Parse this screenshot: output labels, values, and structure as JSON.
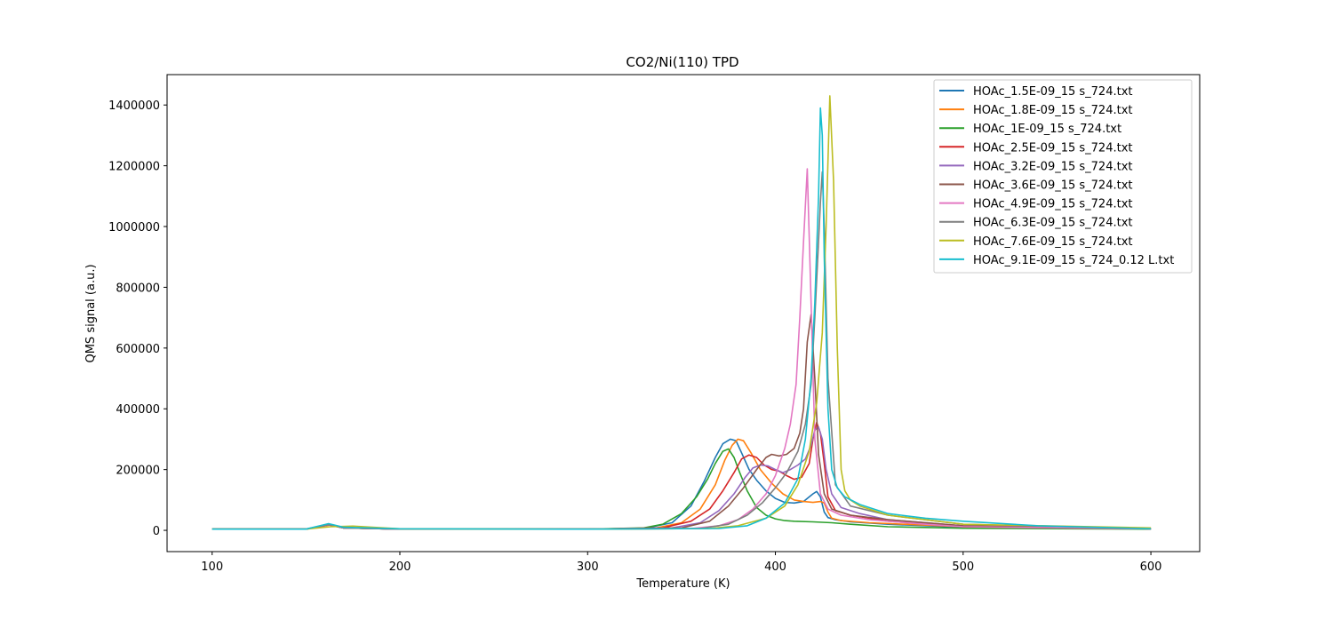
{
  "chart_data": {
    "type": "line",
    "title": "CO2/Ni(110) TPD",
    "xlabel": "Temperature (K)",
    "ylabel": "QMS signal (a.u.)",
    "xlim": [
      76,
      626
    ],
    "ylim": [
      -70000,
      1500000
    ],
    "xticks": [
      100,
      200,
      300,
      400,
      500,
      600
    ],
    "xtick_labels": [
      "100",
      "200",
      "300",
      "400",
      "500",
      "600"
    ],
    "yticks": [
      0,
      200000,
      400000,
      600000,
      800000,
      1000000,
      1200000,
      1400000
    ],
    "ytick_labels": [
      "0",
      "200000",
      "400000",
      "600000",
      "800000",
      "1000000",
      "1200000",
      "1400000"
    ],
    "grid": false,
    "legend_position": "top-right",
    "series": [
      {
        "name": "HOAc_1.5E-09_15 s_724.txt",
        "color": "#1f77b4",
        "x": [
          100,
          150,
          162,
          170,
          200,
          300,
          330,
          345,
          355,
          362,
          368,
          372,
          376,
          379,
          382,
          386,
          390,
          395,
          400,
          405,
          410,
          415,
          418,
          420,
          422,
          424,
          426,
          428,
          432,
          440,
          460,
          500,
          600
        ],
        "y": [
          4000,
          4000,
          20000,
          8000,
          4000,
          4000,
          6000,
          25000,
          80000,
          160000,
          240000,
          285000,
          300000,
          295000,
          255000,
          200000,
          165000,
          130000,
          105000,
          92000,
          90000,
          95000,
          110000,
          120000,
          128000,
          110000,
          60000,
          42000,
          35000,
          28000,
          20000,
          10000,
          5000
        ]
      },
      {
        "name": "HOAc_1.8E-09_15 s_724.txt",
        "color": "#ff7f0e",
        "x": [
          100,
          150,
          163,
          170,
          200,
          300,
          335,
          350,
          360,
          368,
          373,
          377,
          380,
          383,
          387,
          392,
          398,
          404,
          410,
          415,
          420,
          424,
          426,
          428,
          430,
          435,
          450,
          500,
          600
        ],
        "y": [
          4000,
          4000,
          18000,
          8000,
          4000,
          4000,
          6000,
          25000,
          70000,
          150000,
          230000,
          280000,
          300000,
          295000,
          255000,
          200000,
          155000,
          120000,
          100000,
          95000,
          92000,
          95000,
          90000,
          60000,
          40000,
          32000,
          25000,
          12000,
          5000
        ]
      },
      {
        "name": "HOAc_1E-09_15 s_724.txt",
        "color": "#2ca02c",
        "x": [
          100,
          150,
          162,
          170,
          200,
          300,
          330,
          340,
          350,
          358,
          364,
          368,
          372,
          375,
          378,
          381,
          385,
          390,
          395,
          400,
          405,
          410,
          420,
          430,
          440,
          460,
          500,
          600
        ],
        "y": [
          4000,
          4000,
          18000,
          8000,
          4000,
          4000,
          8000,
          20000,
          55000,
          110000,
          170000,
          220000,
          260000,
          268000,
          240000,
          190000,
          130000,
          75000,
          50000,
          38000,
          32000,
          30000,
          28000,
          25000,
          20000,
          12000,
          7000,
          4000
        ]
      },
      {
        "name": "HOAc_2.5E-09_15 s_724.txt",
        "color": "#d62728",
        "x": [
          100,
          150,
          162,
          170,
          200,
          300,
          340,
          355,
          365,
          372,
          378,
          382,
          386,
          390,
          394,
          398,
          402,
          406,
          410,
          414,
          418,
          420,
          422,
          424,
          426,
          428,
          432,
          440,
          460,
          500,
          600
        ],
        "y": [
          4000,
          4000,
          18000,
          8000,
          4000,
          4000,
          8000,
          30000,
          70000,
          130000,
          190000,
          235000,
          248000,
          240000,
          215000,
          200000,
          195000,
          180000,
          168000,
          175000,
          220000,
          300000,
          355000,
          320000,
          220000,
          110000,
          65000,
          50000,
          30000,
          12000,
          5000
        ]
      },
      {
        "name": "HOAc_3.2E-09_15 s_724.txt",
        "color": "#9467bd",
        "x": [
          100,
          150,
          162,
          170,
          200,
          300,
          345,
          360,
          370,
          378,
          384,
          388,
          392,
          396,
          400,
          404,
          408,
          412,
          416,
          419,
          421,
          423,
          425,
          427,
          430,
          435,
          445,
          460,
          500,
          600
        ],
        "y": [
          4000,
          4000,
          18000,
          8000,
          4000,
          4000,
          8000,
          25000,
          65000,
          120000,
          175000,
          205000,
          215000,
          212000,
          200000,
          190000,
          200000,
          215000,
          235000,
          280000,
          330000,
          340000,
          300000,
          200000,
          120000,
          75000,
          55000,
          35000,
          15000,
          5000
        ]
      },
      {
        "name": "HOAc_3.6E-09_15 s_724.txt",
        "color": "#8c564b",
        "x": [
          100,
          150,
          162,
          170,
          200,
          300,
          350,
          365,
          375,
          383,
          390,
          395,
          398,
          402,
          406,
          410,
          413,
          415,
          417,
          419,
          421,
          423,
          426,
          430,
          440,
          460,
          500,
          600
        ],
        "y": [
          4000,
          4000,
          18000,
          8000,
          4000,
          4000,
          8000,
          30000,
          80000,
          140000,
          200000,
          240000,
          250000,
          245000,
          250000,
          270000,
          320000,
          400000,
          620000,
          710000,
          500000,
          250000,
          120000,
          70000,
          50000,
          35000,
          15000,
          5000
        ]
      },
      {
        "name": "HOAc_4.9E-09_15 s_724.txt",
        "color": "#e377c2",
        "x": [
          100,
          150,
          162,
          170,
          200,
          300,
          355,
          370,
          380,
          388,
          395,
          400,
          405,
          408,
          411,
          413,
          415,
          417,
          419,
          421,
          424,
          428,
          435,
          450,
          480,
          500,
          600
        ],
        "y": [
          4000,
          4000,
          18000,
          8000,
          4000,
          4000,
          6000,
          15000,
          35000,
          70000,
          120000,
          180000,
          270000,
          350000,
          480000,
          700000,
          950000,
          1190000,
          750000,
          300000,
          120000,
          70000,
          50000,
          35000,
          20000,
          12000,
          5000
        ]
      },
      {
        "name": "HOAc_6.3E-09_15 s_724.txt",
        "color": "#7f7f7f",
        "x": [
          100,
          150,
          162,
          170,
          200,
          300,
          360,
          375,
          385,
          393,
          400,
          406,
          412,
          416,
          419,
          421,
          423,
          424,
          425,
          426,
          428,
          432,
          440,
          460,
          500,
          600
        ],
        "y": [
          4000,
          4000,
          18000,
          8000,
          4000,
          4000,
          6000,
          20000,
          50000,
          90000,
          140000,
          190000,
          260000,
          350000,
          480000,
          700000,
          950000,
          1080000,
          1180000,
          1000000,
          500000,
          150000,
          80000,
          50000,
          20000,
          5000
        ]
      },
      {
        "name": "HOAc_7.6E-09_15 s_724.txt",
        "color": "#bcbd22",
        "x": [
          100,
          150,
          163,
          175,
          200,
          300,
          365,
          380,
          395,
          405,
          412,
          418,
          422,
          425,
          427,
          429,
          431,
          433,
          435,
          437,
          440,
          445,
          460,
          500,
          600
        ],
        "y": [
          4000,
          4000,
          12000,
          14000,
          5000,
          4000,
          6000,
          15000,
          40000,
          80000,
          150000,
          260000,
          420000,
          650000,
          1000000,
          1430000,
          1150000,
          600000,
          200000,
          130000,
          100000,
          80000,
          50000,
          20000,
          8000
        ]
      },
      {
        "name": "HOAc_9.1E-09_15 s_724_0.12 L.txt",
        "color": "#17becf",
        "x": [
          100,
          150,
          162,
          170,
          200,
          300,
          370,
          385,
          395,
          405,
          412,
          416,
          419,
          421,
          423,
          424,
          425,
          426,
          428,
          430,
          433,
          437,
          445,
          460,
          480,
          500,
          540,
          600
        ],
        "y": [
          4000,
          4000,
          22000,
          10000,
          5000,
          4000,
          6000,
          15000,
          40000,
          90000,
          170000,
          300000,
          500000,
          750000,
          1100000,
          1390000,
          1300000,
          900000,
          400000,
          200000,
          140000,
          110000,
          85000,
          55000,
          40000,
          30000,
          15000,
          5000
        ]
      }
    ]
  }
}
